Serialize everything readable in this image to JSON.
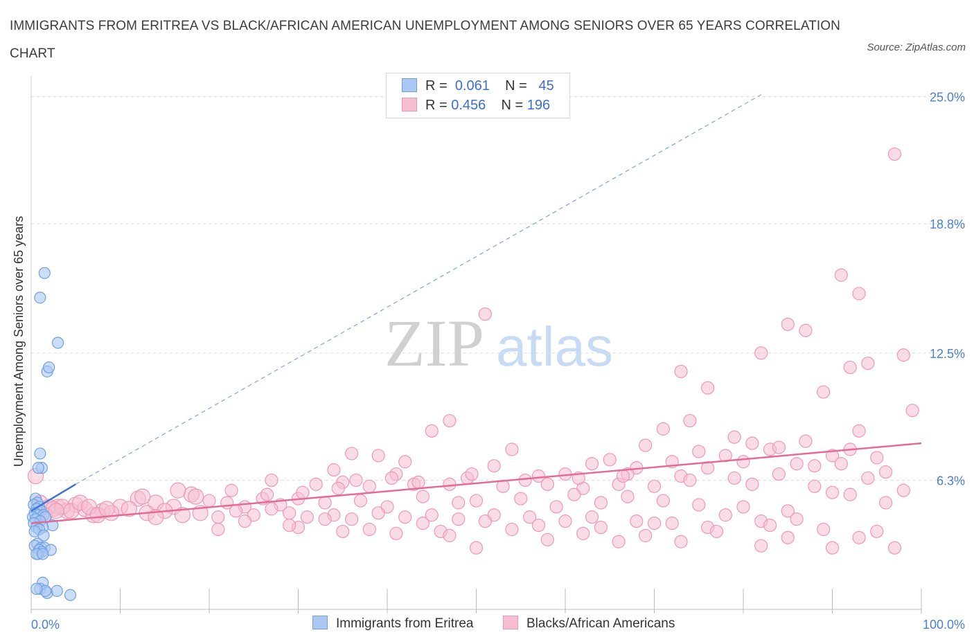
{
  "title": "IMMIGRANTS FROM ERITREA VS BLACK/AFRICAN AMERICAN UNEMPLOYMENT AMONG SENIORS OVER 65 YEARS CORRELATION CHART",
  "source": "Source: ZipAtlas.com",
  "watermark": {
    "zip": "ZIP",
    "atlas": "atlas"
  },
  "legend": {
    "series1": {
      "r_label": "R =",
      "r_value": "0.061",
      "n_label": "N =",
      "n_value": "45"
    },
    "series2": {
      "r_label": "R =",
      "r_value": "0.456",
      "n_label": "N =",
      "n_value": "196"
    }
  },
  "colors": {
    "blue_fill": "#aac8f2",
    "blue_stroke": "#6f9fe3",
    "blue_line": "#3b73d6",
    "pink_fill": "#f6bfd1",
    "pink_stroke": "#ee97b5",
    "pink_line": "#e46b97",
    "grid": "#d9d9d9",
    "tick_text": "#4a7fd4"
  },
  "chart_data": {
    "type": "scatter",
    "title": "IMMIGRANTS FROM ERITREA VS BLACK/AFRICAN AMERICAN UNEMPLOYMENT AMONG SENIORS OVER 65 YEARS CORRELATION CHART",
    "xlabel": "",
    "ylabel": "Unemployment Among Seniors over 65 years",
    "xlim": [
      0,
      100
    ],
    "ylim": [
      0,
      26
    ],
    "x_tick_labels": [
      "0.0%",
      "100.0%"
    ],
    "y_ticks": [
      6.3,
      12.5,
      18.8,
      25.0
    ],
    "y_tick_labels": [
      "6.3%",
      "12.5%",
      "18.8%",
      "25.0%"
    ],
    "grid": true,
    "legend_position": "top-center",
    "series": [
      {
        "name": "Immigrants from Eritrea",
        "color": "blue",
        "R": 0.061,
        "N": 45,
        "trend": {
          "x": [
            0,
            5
          ],
          "y": [
            4.8,
            6.1
          ],
          "extended_dashed_to": [
            82,
            25.1
          ]
        },
        "points": [
          [
            1.5,
            16.4
          ],
          [
            1.0,
            15.2
          ],
          [
            3.0,
            13.0
          ],
          [
            1.8,
            11.6
          ],
          [
            2.0,
            11.8
          ],
          [
            1.0,
            7.6
          ],
          [
            1.2,
            6.9
          ],
          [
            0.8,
            6.9
          ],
          [
            0.5,
            5.4
          ],
          [
            0.7,
            5.2
          ],
          [
            0.3,
            5.1
          ],
          [
            0.9,
            5.0
          ],
          [
            0.6,
            4.9
          ],
          [
            1.1,
            4.8
          ],
          [
            0.4,
            4.7
          ],
          [
            0.8,
            4.6
          ],
          [
            1.4,
            4.6
          ],
          [
            0.2,
            4.5
          ],
          [
            1.6,
            4.5
          ],
          [
            0.5,
            4.4
          ],
          [
            1.0,
            4.3
          ],
          [
            0.3,
            4.2
          ],
          [
            2.4,
            4.1
          ],
          [
            1.3,
            4.0
          ],
          [
            0.6,
            4.0
          ],
          [
            0.9,
            3.9
          ],
          [
            0.4,
            3.8
          ],
          [
            1.4,
            3.6
          ],
          [
            0.7,
            3.2
          ],
          [
            0.4,
            3.1
          ],
          [
            1.1,
            3.0
          ],
          [
            1.5,
            3.0
          ],
          [
            2.2,
            2.9
          ],
          [
            0.9,
            2.9
          ],
          [
            1.2,
            2.8
          ],
          [
            0.8,
            2.7
          ],
          [
            0.6,
            2.7
          ],
          [
            1.3,
            2.7
          ],
          [
            1.3,
            1.3
          ],
          [
            1.0,
            1.0
          ],
          [
            1.8,
            0.8
          ],
          [
            2.9,
            0.9
          ],
          [
            4.4,
            0.7
          ],
          [
            1.6,
            0.9
          ],
          [
            0.6,
            1.0
          ]
        ]
      },
      {
        "name": "Blacks/African Americans",
        "color": "pink",
        "R": 0.456,
        "N": 196,
        "trend": {
          "x": [
            0,
            100
          ],
          "y": [
            4.2,
            8.1
          ]
        },
        "points": [
          [
            97,
            22.2
          ],
          [
            91,
            16.3
          ],
          [
            93,
            15.4
          ],
          [
            51,
            14.4
          ],
          [
            85,
            13.9
          ],
          [
            87,
            13.6
          ],
          [
            82,
            12.5
          ],
          [
            94,
            12.0
          ],
          [
            92,
            11.8
          ],
          [
            73,
            11.6
          ],
          [
            98,
            12.4
          ],
          [
            89,
            10.6
          ],
          [
            76,
            10.8
          ],
          [
            99,
            9.7
          ],
          [
            47,
            9.2
          ],
          [
            45,
            8.7
          ],
          [
            71,
            8.8
          ],
          [
            93,
            8.7
          ],
          [
            74,
            9.2
          ],
          [
            79,
            8.4
          ],
          [
            81,
            8.1
          ],
          [
            75,
            7.7
          ],
          [
            69,
            8.0
          ],
          [
            54,
            7.8
          ],
          [
            83,
            7.8
          ],
          [
            87,
            8.2
          ],
          [
            84,
            7.9
          ],
          [
            78,
            7.5
          ],
          [
            92,
            7.8
          ],
          [
            90,
            7.5
          ],
          [
            65,
            7.3
          ],
          [
            72,
            7.2
          ],
          [
            80,
            7.2
          ],
          [
            86,
            7.1
          ],
          [
            95,
            7.4
          ],
          [
            36,
            7.6
          ],
          [
            39,
            7.5
          ],
          [
            42,
            7.2
          ],
          [
            52,
            7.0
          ],
          [
            63,
            7.1
          ],
          [
            68,
            6.9
          ],
          [
            76,
            6.9
          ],
          [
            88,
            7.0
          ],
          [
            91,
            7.1
          ],
          [
            84,
            6.6
          ],
          [
            34,
            6.8
          ],
          [
            41,
            6.6
          ],
          [
            49,
            6.4
          ],
          [
            57,
            6.5
          ],
          [
            60,
            6.6
          ],
          [
            67,
            6.6
          ],
          [
            73,
            6.5
          ],
          [
            79,
            6.4
          ],
          [
            94,
            6.4
          ],
          [
            96,
            6.7
          ],
          [
            27,
            6.3
          ],
          [
            32,
            6.1
          ],
          [
            35,
            6.2
          ],
          [
            38,
            6.0
          ],
          [
            43,
            6.1
          ],
          [
            47,
            6.1
          ],
          [
            53,
            6.0
          ],
          [
            58,
            6.1
          ],
          [
            62,
            5.9
          ],
          [
            66,
            6.1
          ],
          [
            70,
            6.0
          ],
          [
            74,
            6.3
          ],
          [
            81,
            6.1
          ],
          [
            88,
            6.0
          ],
          [
            90,
            5.7
          ],
          [
            12,
            5.4
          ],
          [
            14,
            5.2
          ],
          [
            16,
            5.0
          ],
          [
            18,
            5.6
          ],
          [
            20,
            5.3
          ],
          [
            22,
            5.2
          ],
          [
            24,
            5.0
          ],
          [
            26,
            5.4
          ],
          [
            28,
            5.1
          ],
          [
            30,
            5.4
          ],
          [
            33,
            5.2
          ],
          [
            37,
            5.3
          ],
          [
            40,
            5.0
          ],
          [
            44,
            5.5
          ],
          [
            48,
            5.2
          ],
          [
            50,
            5.3
          ],
          [
            55,
            5.4
          ],
          [
            59,
            5.0
          ],
          [
            61,
            5.6
          ],
          [
            64,
            5.2
          ],
          [
            67,
            5.5
          ],
          [
            71,
            5.3
          ],
          [
            75,
            5.1
          ],
          [
            80,
            5.0
          ],
          [
            85,
            4.8
          ],
          [
            92,
            5.6
          ],
          [
            96,
            5.2
          ],
          [
            98,
            5.8
          ],
          [
            10,
            5.0
          ],
          [
            8,
            4.8
          ],
          [
            5,
            5.1
          ],
          [
            3,
            5.0
          ],
          [
            4,
            4.8
          ],
          [
            6,
            4.9
          ],
          [
            9,
            4.7
          ],
          [
            11,
            4.9
          ],
          [
            13,
            4.7
          ],
          [
            15,
            4.8
          ],
          [
            17,
            4.6
          ],
          [
            19,
            4.7
          ],
          [
            21,
            4.5
          ],
          [
            23,
            4.8
          ],
          [
            25,
            4.6
          ],
          [
            27,
            4.9
          ],
          [
            29,
            4.7
          ],
          [
            31,
            4.5
          ],
          [
            34,
            4.6
          ],
          [
            36,
            4.4
          ],
          [
            39,
            4.7
          ],
          [
            42,
            4.5
          ],
          [
            45,
            4.6
          ],
          [
            48,
            4.4
          ],
          [
            52,
            4.6
          ],
          [
            56,
            4.5
          ],
          [
            60,
            4.3
          ],
          [
            63,
            4.5
          ],
          [
            68,
            4.3
          ],
          [
            72,
            4.2
          ],
          [
            78,
            4.6
          ],
          [
            82,
            4.3
          ],
          [
            86,
            4.4
          ],
          [
            7,
            4.6
          ],
          [
            14,
            4.5
          ],
          [
            24,
            4.3
          ],
          [
            33,
            4.4
          ],
          [
            44,
            4.2
          ],
          [
            51,
            4.3
          ],
          [
            57,
            4.1
          ],
          [
            64,
            4.0
          ],
          [
            70,
            4.2
          ],
          [
            76,
            4.0
          ],
          [
            83,
            4.1
          ],
          [
            89,
            3.9
          ],
          [
            95,
            3.8
          ],
          [
            30,
            4.0
          ],
          [
            38,
            3.9
          ],
          [
            46,
            3.8
          ],
          [
            54,
            3.9
          ],
          [
            62,
            3.7
          ],
          [
            69,
            3.6
          ],
          [
            77,
            3.8
          ],
          [
            85,
            3.5
          ],
          [
            93,
            3.5
          ],
          [
            21,
            3.9
          ],
          [
            29,
            4.1
          ],
          [
            35,
            3.8
          ],
          [
            41,
            3.7
          ],
          [
            47,
            3.6
          ],
          [
            58,
            3.4
          ],
          [
            66,
            3.3
          ],
          [
            73,
            3.3
          ],
          [
            82,
            3.1
          ],
          [
            90,
            3.0
          ],
          [
            97,
            3.0
          ],
          [
            50,
            3.0
          ],
          [
            0.5,
            6.5
          ],
          [
            1.0,
            5.2
          ],
          [
            2.0,
            5.0
          ],
          [
            2.5,
            4.9
          ],
          [
            3.5,
            5.0
          ],
          [
            4.5,
            4.8
          ],
          [
            5.5,
            5.2
          ],
          [
            6.5,
            5.0
          ],
          [
            7.5,
            4.6
          ],
          [
            8.5,
            4.9
          ],
          [
            1.5,
            4.6
          ],
          [
            2.8,
            4.8
          ],
          [
            12.5,
            5.5
          ],
          [
            16.5,
            5.8
          ],
          [
            18.5,
            5.5
          ],
          [
            22.5,
            5.8
          ],
          [
            26.5,
            5.6
          ],
          [
            30.5,
            5.7
          ],
          [
            34.5,
            5.9
          ],
          [
            36.5,
            6.3
          ],
          [
            40.5,
            6.4
          ],
          [
            43.5,
            6.2
          ],
          [
            49.5,
            6.6
          ],
          [
            55.5,
            6.3
          ],
          [
            61.5,
            6.4
          ],
          [
            66.5,
            6.5
          ]
        ]
      }
    ]
  },
  "x_axis": {
    "left_label": "0.0%",
    "right_label": "100.0%"
  },
  "y_axis_label": "Unemployment Among Seniors over 65 years",
  "bottom_legend": {
    "series1": "Immigrants from Eritrea",
    "series2": "Blacks/African Americans"
  }
}
